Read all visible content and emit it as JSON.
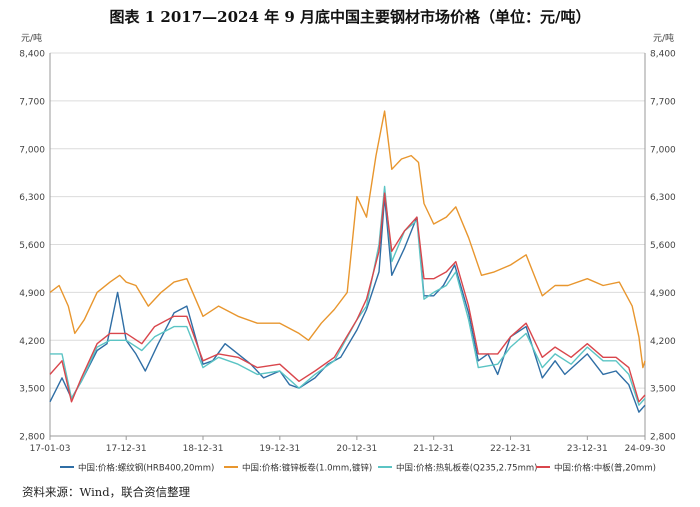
{
  "title": "图表 1    2017—2024 年 9 月底中国主要钢材市场价格（单位：元/吨）",
  "source": "资料来源：Wind，联合资信整理",
  "chart_data": {
    "type": "line",
    "left_unit": "元/吨",
    "right_unit": "元/吨",
    "ylim": [
      2800,
      8400
    ],
    "y_ticks": [
      2800,
      3500,
      4200,
      4900,
      5600,
      6300,
      7000,
      7700,
      8400
    ],
    "y_tick_labels": [
      "2,800",
      "3,500",
      "4,200",
      "4,900",
      "5,600",
      "6,300",
      "7,000",
      "7,700",
      "8,400"
    ],
    "x_ticks": [
      {
        "date": "2017-01-03",
        "label": "17-01-03"
      },
      {
        "date": "2017-12-31",
        "label": "17-12-31"
      },
      {
        "date": "2018-12-31",
        "label": "18-12-31"
      },
      {
        "date": "2019-12-31",
        "label": "19-12-31"
      },
      {
        "date": "2020-12-31",
        "label": "20-12-31"
      },
      {
        "date": "2021-12-31",
        "label": "21-12-31"
      },
      {
        "date": "2022-12-31",
        "label": "22-12-31"
      },
      {
        "date": "2023-12-31",
        "label": "23-12-31"
      },
      {
        "date": "2024-09-30",
        "label": "24-09-30"
      }
    ],
    "grid": true,
    "legend_position": "bottom",
    "series": [
      {
        "name": "中国:价格:螺纹钢(HRB400,20mm)",
        "color": "#2f6ea5",
        "points": [
          [
            "2017-01-03",
            3300
          ],
          [
            "2017-03-01",
            3650
          ],
          [
            "2017-04-15",
            3350
          ],
          [
            "2017-06-01",
            3600
          ],
          [
            "2017-08-15",
            4050
          ],
          [
            "2017-10-01",
            4150
          ],
          [
            "2017-11-20",
            4900
          ],
          [
            "2017-12-31",
            4200
          ],
          [
            "2018-02-15",
            4000
          ],
          [
            "2018-04-01",
            3750
          ],
          [
            "2018-06-01",
            4150
          ],
          [
            "2018-08-15",
            4600
          ],
          [
            "2018-10-15",
            4700
          ],
          [
            "2018-12-31",
            3850
          ],
          [
            "2019-02-15",
            3900
          ],
          [
            "2019-04-15",
            4150
          ],
          [
            "2019-06-15",
            4000
          ],
          [
            "2019-08-15",
            3850
          ],
          [
            "2019-10-15",
            3650
          ],
          [
            "2019-12-31",
            3750
          ],
          [
            "2020-02-15",
            3550
          ],
          [
            "2020-03-31",
            3500
          ],
          [
            "2020-06-15",
            3650
          ],
          [
            "2020-08-15",
            3850
          ],
          [
            "2020-10-15",
            3950
          ],
          [
            "2020-12-31",
            4350
          ],
          [
            "2021-02-15",
            4650
          ],
          [
            "2021-04-15",
            5200
          ],
          [
            "2021-05-12",
            6300
          ],
          [
            "2021-06-15",
            5150
          ],
          [
            "2021-08-15",
            5550
          ],
          [
            "2021-10-12",
            6000
          ],
          [
            "2021-11-15",
            4850
          ],
          [
            "2021-12-31",
            4850
          ],
          [
            "2022-02-15",
            5000
          ],
          [
            "2022-04-10",
            5300
          ],
          [
            "2022-06-15",
            4600
          ],
          [
            "2022-07-31",
            3900
          ],
          [
            "2022-09-15",
            4000
          ],
          [
            "2022-10-31",
            3700
          ],
          [
            "2022-12-31",
            4250
          ],
          [
            "2023-03-15",
            4400
          ],
          [
            "2023-05-31",
            3650
          ],
          [
            "2023-07-31",
            3900
          ],
          [
            "2023-09-15",
            3700
          ],
          [
            "2023-12-31",
            4000
          ],
          [
            "2024-03-15",
            3700
          ],
          [
            "2024-05-15",
            3750
          ],
          [
            "2024-07-15",
            3550
          ],
          [
            "2024-09-01",
            3150
          ],
          [
            "2024-09-30",
            3250
          ]
        ]
      },
      {
        "name": "中国:价格:镀锌板卷(1.0mm,镀锌)",
        "color": "#e8962e",
        "points": [
          [
            "2017-01-03",
            4900
          ],
          [
            "2017-02-15",
            5000
          ],
          [
            "2017-03-31",
            4700
          ],
          [
            "2017-05-01",
            4300
          ],
          [
            "2017-06-15",
            4500
          ],
          [
            "2017-08-15",
            4900
          ],
          [
            "2017-10-15",
            5050
          ],
          [
            "2017-11-30",
            5150
          ],
          [
            "2017-12-31",
            5050
          ],
          [
            "2018-02-15",
            5000
          ],
          [
            "2018-04-15",
            4700
          ],
          [
            "2018-06-15",
            4900
          ],
          [
            "2018-08-15",
            5050
          ],
          [
            "2018-10-15",
            5100
          ],
          [
            "2018-12-31",
            4550
          ],
          [
            "2019-03-15",
            4700
          ],
          [
            "2019-06-15",
            4550
          ],
          [
            "2019-09-15",
            4450
          ],
          [
            "2019-12-31",
            4450
          ],
          [
            "2020-03-31",
            4300
          ],
          [
            "2020-05-15",
            4200
          ],
          [
            "2020-07-15",
            4450
          ],
          [
            "2020-09-15",
            4650
          ],
          [
            "2020-11-15",
            4900
          ],
          [
            "2020-12-31",
            6300
          ],
          [
            "2021-02-15",
            6000
          ],
          [
            "2021-04-01",
            6900
          ],
          [
            "2021-05-12",
            7550
          ],
          [
            "2021-06-15",
            6700
          ],
          [
            "2021-07-31",
            6850
          ],
          [
            "2021-09-15",
            6900
          ],
          [
            "2021-10-20",
            6800
          ],
          [
            "2021-11-15",
            6200
          ],
          [
            "2021-12-31",
            5900
          ],
          [
            "2022-03-01",
            6000
          ],
          [
            "2022-04-15",
            6150
          ],
          [
            "2022-06-15",
            5700
          ],
          [
            "2022-08-15",
            5150
          ],
          [
            "2022-10-15",
            5200
          ],
          [
            "2022-12-31",
            5300
          ],
          [
            "2023-03-15",
            5450
          ],
          [
            "2023-05-31",
            4850
          ],
          [
            "2023-07-31",
            5000
          ],
          [
            "2023-09-30",
            5000
          ],
          [
            "2023-12-31",
            5100
          ],
          [
            "2024-03-15",
            5000
          ],
          [
            "2024-05-31",
            5050
          ],
          [
            "2024-07-31",
            4700
          ],
          [
            "2024-09-01",
            4250
          ],
          [
            "2024-09-20",
            3800
          ],
          [
            "2024-09-30",
            3900
          ]
        ]
      },
      {
        "name": "中国:价格:热轧板卷(Q235,2.75mm)",
        "color": "#5bc4c4",
        "points": [
          [
            "2017-01-03",
            4000
          ],
          [
            "2017-03-01",
            4000
          ],
          [
            "2017-04-15",
            3350
          ],
          [
            "2017-06-01",
            3600
          ],
          [
            "2017-08-15",
            4100
          ],
          [
            "2017-10-15",
            4200
          ],
          [
            "2017-12-31",
            4200
          ],
          [
            "2018-03-15",
            4050
          ],
          [
            "2018-05-15",
            4250
          ],
          [
            "2018-08-15",
            4400
          ],
          [
            "2018-10-15",
            4400
          ],
          [
            "2018-12-31",
            3800
          ],
          [
            "2019-03-15",
            3950
          ],
          [
            "2019-06-15",
            3850
          ],
          [
            "2019-09-15",
            3700
          ],
          [
            "2019-12-31",
            3750
          ],
          [
            "2020-03-31",
            3500
          ],
          [
            "2020-06-15",
            3700
          ],
          [
            "2020-09-15",
            3900
          ],
          [
            "2020-12-31",
            4500
          ],
          [
            "2021-02-15",
            4700
          ],
          [
            "2021-04-15",
            5600
          ],
          [
            "2021-05-12",
            6450
          ],
          [
            "2021-06-15",
            5350
          ],
          [
            "2021-08-15",
            5800
          ],
          [
            "2021-10-12",
            5950
          ],
          [
            "2021-11-15",
            4800
          ],
          [
            "2021-12-31",
            4900
          ],
          [
            "2022-03-01",
            5000
          ],
          [
            "2022-04-15",
            5200
          ],
          [
            "2022-06-15",
            4500
          ],
          [
            "2022-07-31",
            3800
          ],
          [
            "2022-10-31",
            3850
          ],
          [
            "2022-12-31",
            4100
          ],
          [
            "2023-03-15",
            4300
          ],
          [
            "2023-05-31",
            3800
          ],
          [
            "2023-07-31",
            4000
          ],
          [
            "2023-10-15",
            3850
          ],
          [
            "2023-12-31",
            4100
          ],
          [
            "2024-03-15",
            3900
          ],
          [
            "2024-05-15",
            3900
          ],
          [
            "2024-07-15",
            3700
          ],
          [
            "2024-09-01",
            3250
          ],
          [
            "2024-09-30",
            3350
          ]
        ]
      },
      {
        "name": "中国:价格:中板(普,20mm)",
        "color": "#d9464c",
        "points": [
          [
            "2017-01-03",
            3700
          ],
          [
            "2017-03-01",
            3900
          ],
          [
            "2017-04-15",
            3300
          ],
          [
            "2017-06-01",
            3650
          ],
          [
            "2017-08-15",
            4150
          ],
          [
            "2017-10-15",
            4300
          ],
          [
            "2017-12-31",
            4300
          ],
          [
            "2018-03-15",
            4150
          ],
          [
            "2018-05-15",
            4400
          ],
          [
            "2018-08-15",
            4550
          ],
          [
            "2018-10-15",
            4550
          ],
          [
            "2018-12-31",
            3900
          ],
          [
            "2019-03-15",
            4000
          ],
          [
            "2019-06-15",
            3950
          ],
          [
            "2019-09-15",
            3800
          ],
          [
            "2019-12-31",
            3850
          ],
          [
            "2020-03-31",
            3600
          ],
          [
            "2020-06-15",
            3750
          ],
          [
            "2020-09-15",
            3950
          ],
          [
            "2020-12-31",
            4500
          ],
          [
            "2021-02-15",
            4800
          ],
          [
            "2021-04-15",
            5500
          ],
          [
            "2021-05-12",
            6350
          ],
          [
            "2021-06-15",
            5500
          ],
          [
            "2021-08-15",
            5800
          ],
          [
            "2021-10-12",
            6000
          ],
          [
            "2021-11-15",
            5100
          ],
          [
            "2021-12-31",
            5100
          ],
          [
            "2022-03-01",
            5200
          ],
          [
            "2022-04-15",
            5350
          ],
          [
            "2022-06-15",
            4700
          ],
          [
            "2022-07-31",
            4000
          ],
          [
            "2022-10-31",
            4000
          ],
          [
            "2022-12-31",
            4250
          ],
          [
            "2023-03-15",
            4450
          ],
          [
            "2023-05-31",
            3950
          ],
          [
            "2023-07-31",
            4100
          ],
          [
            "2023-10-15",
            3950
          ],
          [
            "2023-12-31",
            4150
          ],
          [
            "2024-03-15",
            3950
          ],
          [
            "2024-05-15",
            3950
          ],
          [
            "2024-07-15",
            3800
          ],
          [
            "2024-09-01",
            3300
          ],
          [
            "2024-09-30",
            3400
          ]
        ]
      }
    ]
  }
}
